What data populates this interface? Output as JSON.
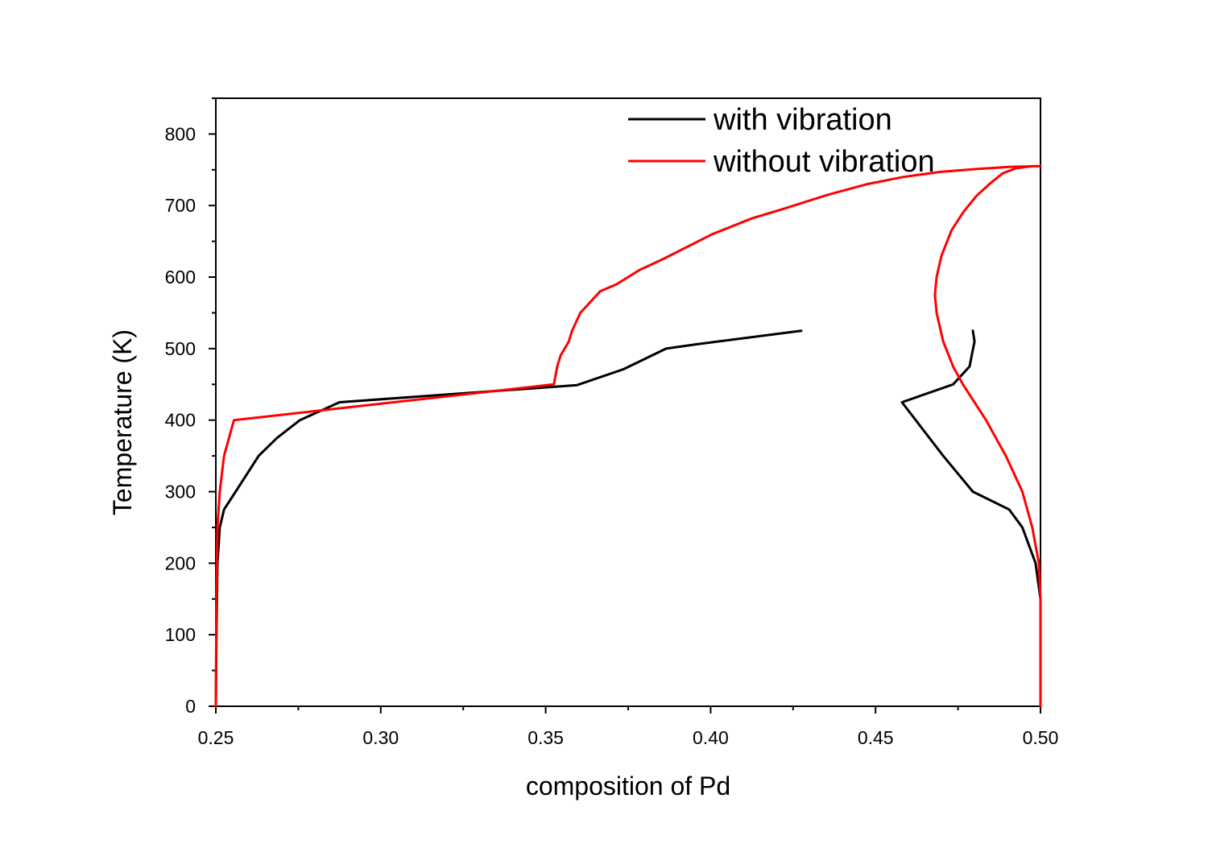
{
  "chart_data": {
    "type": "line",
    "title": "",
    "xlabel": "composition of Pd",
    "ylabel": "Temperature (K)",
    "xlim": [
      0.25,
      0.5
    ],
    "ylim": [
      0,
      850
    ],
    "x_ticks": [
      0.25,
      0.3,
      0.35,
      0.4,
      0.45,
      0.5
    ],
    "x_tick_labels": [
      "0.25",
      "0.30",
      "0.35",
      "0.40",
      "0.45",
      "0.50"
    ],
    "y_ticks": [
      0,
      100,
      200,
      300,
      400,
      500,
      600,
      700,
      800
    ],
    "y_tick_labels": [
      "0",
      "100",
      "200",
      "300",
      "400",
      "500",
      "600",
      "700",
      "800"
    ],
    "grid": false,
    "legend": {
      "placement": "top-right"
    },
    "series": [
      {
        "name": "with vibration",
        "color": "#000000",
        "segments": [
          [
            [
              0.25,
              0
            ],
            [
              0.2502,
              100
            ],
            [
              0.2505,
              200
            ],
            [
              0.2512,
              250
            ],
            [
              0.2525,
              275
            ],
            [
              0.256,
              300
            ],
            [
              0.263,
              350
            ],
            [
              0.2685,
              375
            ],
            [
              0.2755,
              400
            ],
            [
              0.2875,
              425
            ],
            [
              0.3595,
              449
            ],
            [
              0.3735,
              471
            ],
            [
              0.3865,
              500
            ],
            [
              0.3955,
              506
            ],
            [
              0.4275,
              525
            ]
          ],
          [
            [
              0.4795,
              525
            ],
            [
              0.48,
              510
            ],
            [
              0.4785,
              475
            ],
            [
              0.4735,
              450
            ],
            [
              0.458,
              425
            ],
            [
              0.4705,
              350
            ],
            [
              0.4795,
              300
            ],
            [
              0.4905,
              275
            ],
            [
              0.4945,
              250
            ],
            [
              0.4985,
              200
            ],
            [
              0.5,
              150
            ],
            [
              0.5,
              0
            ]
          ]
        ]
      },
      {
        "name": "without vibration",
        "color": "#ff0000",
        "segments": [
          [
            [
              0.25,
              0
            ],
            [
              0.2502,
              150
            ],
            [
              0.2505,
              250
            ],
            [
              0.2512,
              300
            ],
            [
              0.2525,
              350
            ],
            [
              0.2555,
              400
            ],
            [
              0.3525,
              450
            ],
            [
              0.3535,
              475
            ],
            [
              0.3545,
              490
            ],
            [
              0.357,
              510
            ],
            [
              0.358,
              525
            ],
            [
              0.3605,
              550
            ],
            [
              0.3625,
              560
            ],
            [
              0.3665,
              580
            ],
            [
              0.3715,
              590
            ],
            [
              0.3785,
              610
            ],
            [
              0.3855,
              625
            ],
            [
              0.4005,
              660
            ],
            [
              0.4125,
              682
            ],
            [
              0.4225,
              696
            ],
            [
              0.4355,
              715
            ],
            [
              0.4475,
              730
            ],
            [
              0.4585,
              740
            ],
            [
              0.4695,
              747
            ],
            [
              0.4805,
              751
            ],
            [
              0.4905,
              754
            ],
            [
              0.4985,
              755
            ],
            [
              0.5,
              755
            ]
          ],
          [
            [
              0.5,
              0
            ],
            [
              0.5,
              150
            ],
            [
              0.4995,
              200
            ],
            [
              0.4975,
              250
            ],
            [
              0.4945,
              300
            ],
            [
              0.4895,
              350
            ],
            [
              0.4835,
              400
            ],
            [
              0.4765,
              450
            ],
            [
              0.4735,
              475
            ],
            [
              0.4705,
              510
            ],
            [
              0.4685,
              550
            ],
            [
              0.468,
              575
            ],
            [
              0.4685,
              600
            ],
            [
              0.47,
              630
            ],
            [
              0.473,
              665
            ],
            [
              0.4765,
              690
            ],
            [
              0.4805,
              713
            ],
            [
              0.4845,
              730
            ],
            [
              0.4885,
              745
            ],
            [
              0.4925,
              752
            ],
            [
              0.4975,
              755
            ],
            [
              0.5,
              755
            ]
          ]
        ]
      }
    ]
  }
}
